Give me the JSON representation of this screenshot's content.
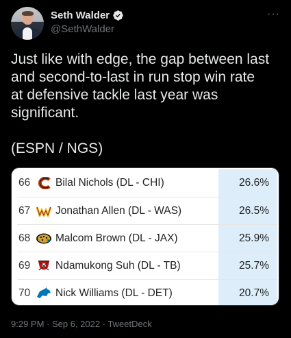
{
  "author": {
    "name": "Seth Walder",
    "handle": "@SethWalder",
    "verified": true
  },
  "more_label": "···",
  "text": "Just like with edge, the gap between last\nand second-to-last in run stop win rate\nat defensive tackle last year was\nsignificant.\n\n(ESPN / NGS)",
  "table": {
    "rows": [
      {
        "rank": "66",
        "team_icon": "bears-logo-icon",
        "player": "Bilal Nichols (DL - CHI)",
        "rate": "26.6%"
      },
      {
        "rank": "67",
        "team_icon": "washington-logo-icon",
        "player": "Jonathan Allen (DL - WAS)",
        "rate": "26.5%"
      },
      {
        "rank": "68",
        "team_icon": "jaguars-logo-icon",
        "player": "Malcom Brown (DL - JAX)",
        "rate": "25.9%"
      },
      {
        "rank": "69",
        "team_icon": "buccaneers-logo-icon",
        "player": "Ndamukong Suh (DL - TB)",
        "rate": "25.7%"
      },
      {
        "rank": "70",
        "team_icon": "lions-logo-icon",
        "player": "Nick Williams (DL - DET)",
        "rate": "20.7%"
      }
    ]
  },
  "meta": "9:29 PM · Sep 6, 2022 · TweetDeck",
  "colors": {
    "background": "#000000",
    "text": "#e7e9ea",
    "muted": "#71767b",
    "verified": "#1d9bf0",
    "rate_column": "#ddeefa"
  }
}
